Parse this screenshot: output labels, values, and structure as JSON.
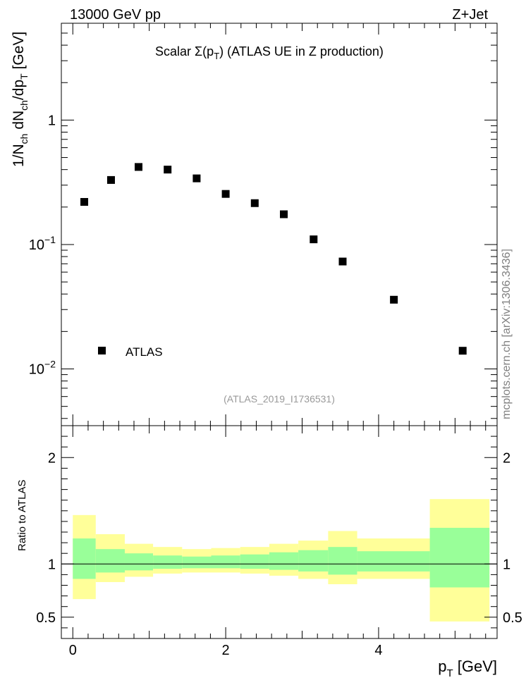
{
  "header": {
    "left": "13000 GeV pp",
    "right": "Z+Jet"
  },
  "title": {
    "prefix": "Scalar",
    "sigma_open": "Σ(p",
    "sigma_sub": "T",
    "sigma_close": ")",
    "rest": "(ATLAS UE in Z production)"
  },
  "side_label": "mcplots.cern.ch [arXiv:1306.3436]",
  "analysis_id": "(ATLAS_2019_I1736531)",
  "legend": {
    "label": "ATLAS"
  },
  "top_ylabel": {
    "p1": "1/N",
    "s1": "ch",
    "p2": " dN",
    "s2": "ch",
    "p3": "/dp",
    "s3": "T",
    "p4": " [GeV]"
  },
  "bottom_ylabel": "Ratio to ATLAS",
  "xlabel": {
    "p": "p",
    "sub": "T",
    "unit": " [GeV]"
  },
  "colors": {
    "marker": "#000000",
    "band_outer": "#ffff99",
    "band_inner": "#99ff99",
    "analysis_id": "#999999",
    "side_label": "#808080"
  },
  "chart_data": [
    {
      "type": "scatter",
      "scale": "log",
      "xlim": [
        -0.15,
        5.55
      ],
      "ylim": [
        0.0035,
        6.0
      ],
      "y_tick_labels": [
        "10^-2",
        "10^-1",
        "1"
      ],
      "x": [
        0.15,
        0.5,
        0.86,
        1.24,
        1.62,
        2.0,
        2.38,
        2.76,
        3.15,
        3.53,
        4.2,
        5.1
      ],
      "series": [
        {
          "name": "ATLAS",
          "values": [
            0.22,
            0.33,
            0.42,
            0.4,
            0.34,
            0.255,
            0.215,
            0.175,
            0.11,
            0.073,
            0.036,
            0.014
          ]
        }
      ]
    },
    {
      "type": "area",
      "ylim": [
        0.3,
        2.3
      ],
      "xlim": [
        -0.15,
        5.55
      ],
      "y_ticks": [
        0.5,
        1,
        2
      ],
      "x_ticks": [
        0,
        2,
        4
      ],
      "reference_line": 1,
      "bins": [
        {
          "lo": 0.0,
          "hi": 0.3,
          "outer": [
            0.67,
            1.46
          ],
          "inner": [
            0.86,
            1.24
          ]
        },
        {
          "lo": 0.3,
          "hi": 0.68,
          "outer": [
            0.83,
            1.28
          ],
          "inner": [
            0.92,
            1.14
          ]
        },
        {
          "lo": 0.68,
          "hi": 1.05,
          "outer": [
            0.88,
            1.19
          ],
          "inner": [
            0.94,
            1.1
          ]
        },
        {
          "lo": 1.05,
          "hi": 1.43,
          "outer": [
            0.91,
            1.16
          ],
          "inner": [
            0.955,
            1.08
          ]
        },
        {
          "lo": 1.43,
          "hi": 1.81,
          "outer": [
            0.92,
            1.14
          ],
          "inner": [
            0.96,
            1.07
          ]
        },
        {
          "lo": 1.81,
          "hi": 2.19,
          "outer": [
            0.92,
            1.15
          ],
          "inner": [
            0.96,
            1.08
          ]
        },
        {
          "lo": 2.19,
          "hi": 2.57,
          "outer": [
            0.91,
            1.16
          ],
          "inner": [
            0.955,
            1.09
          ]
        },
        {
          "lo": 2.57,
          "hi": 2.95,
          "outer": [
            0.89,
            1.19
          ],
          "inner": [
            0.945,
            1.11
          ]
        },
        {
          "lo": 2.95,
          "hi": 3.34,
          "outer": [
            0.86,
            1.22
          ],
          "inner": [
            0.93,
            1.13
          ]
        },
        {
          "lo": 3.34,
          "hi": 3.72,
          "outer": [
            0.81,
            1.31
          ],
          "inner": [
            0.9,
            1.16
          ]
        },
        {
          "lo": 3.72,
          "hi": 4.67,
          "outer": [
            0.86,
            1.24
          ],
          "inner": [
            0.93,
            1.12
          ]
        },
        {
          "lo": 4.67,
          "hi": 5.45,
          "outer": [
            0.46,
            1.61
          ],
          "inner": [
            0.78,
            1.34
          ]
        }
      ]
    }
  ]
}
